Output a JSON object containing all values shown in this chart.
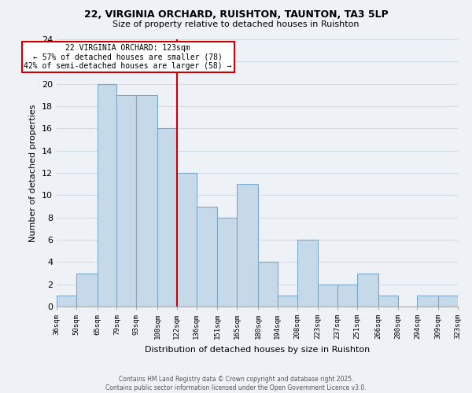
{
  "title": "22, VIRGINIA ORCHARD, RUISHTON, TAUNTON, TA3 5LP",
  "subtitle": "Size of property relative to detached houses in Ruishton",
  "xlabel": "Distribution of detached houses by size in Ruishton",
  "ylabel": "Number of detached properties",
  "bins": [
    36,
    50,
    65,
    79,
    93,
    108,
    122,
    136,
    151,
    165,
    180,
    194,
    208,
    223,
    237,
    251,
    266,
    280,
    294,
    309,
    323
  ],
  "counts": [
    1,
    3,
    20,
    19,
    19,
    16,
    12,
    9,
    8,
    11,
    4,
    1,
    6,
    2,
    2,
    3,
    1,
    0,
    1,
    1
  ],
  "bar_color": "#c6d9e8",
  "bar_edge_color": "#7aaac8",
  "grid_color": "#d0dce8",
  "vline_x": 122,
  "vline_color": "#cc0000",
  "annotation_title": "22 VIRGINIA ORCHARD: 123sqm",
  "annotation_line1": "← 57% of detached houses are smaller (78)",
  "annotation_line2": "42% of semi-detached houses are larger (58) →",
  "annotation_box_facecolor": "#ffffff",
  "annotation_box_edgecolor": "#cc0000",
  "ylim": [
    0,
    24
  ],
  "yticks": [
    0,
    2,
    4,
    6,
    8,
    10,
    12,
    14,
    16,
    18,
    20,
    22,
    24
  ],
  "footer_line1": "Contains HM Land Registry data © Crown copyright and database right 2025.",
  "footer_line2": "Contains public sector information licensed under the Open Government Licence v3.0.",
  "bg_color": "#eef2f7"
}
